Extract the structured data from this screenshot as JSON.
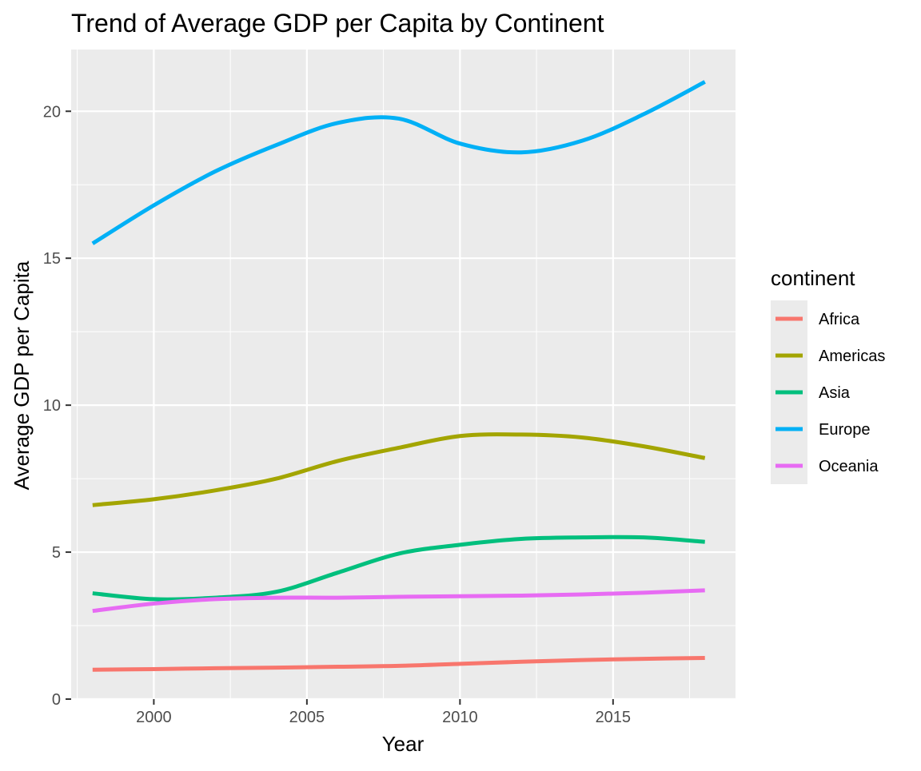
{
  "chart_data": {
    "type": "line",
    "title": "Trend of Average GDP per Capita by Continent",
    "xlabel": "Year",
    "ylabel": "Average GDP per Capita",
    "xlim": [
      1997.3,
      2019.0
    ],
    "ylim": [
      0,
      22.1
    ],
    "x_ticks": [
      2000,
      2005,
      2010,
      2015
    ],
    "y_ticks": [
      0,
      5,
      10,
      15,
      20
    ],
    "x_tick_labels": [
      "2000",
      "2005",
      "2010",
      "2015"
    ],
    "y_tick_labels": [
      "0",
      "5",
      "10",
      "15",
      "20"
    ],
    "grid": true,
    "legend": {
      "title": "continent",
      "position": "right"
    },
    "x": [
      1998,
      2000,
      2002,
      2004,
      2006,
      2008,
      2010,
      2012,
      2014,
      2016,
      2018
    ],
    "series": [
      {
        "name": "Africa",
        "color": "#F8766D",
        "values": [
          1.0,
          1.02,
          1.05,
          1.07,
          1.1,
          1.13,
          1.2,
          1.27,
          1.33,
          1.37,
          1.4
        ]
      },
      {
        "name": "Americas",
        "color": "#A3A500",
        "values": [
          6.6,
          6.8,
          7.1,
          7.5,
          8.1,
          8.55,
          8.95,
          9.0,
          8.9,
          8.6,
          8.2
        ]
      },
      {
        "name": "Asia",
        "color": "#00BF7D",
        "values": [
          3.6,
          3.4,
          3.45,
          3.65,
          4.3,
          4.95,
          5.25,
          5.45,
          5.5,
          5.5,
          5.35
        ]
      },
      {
        "name": "Europe",
        "color": "#00B0F6",
        "values": [
          15.5,
          16.8,
          17.95,
          18.85,
          19.6,
          19.75,
          18.9,
          18.6,
          19.0,
          19.9,
          21.0
        ]
      },
      {
        "name": "Oceania",
        "color": "#E76BF3",
        "values": [
          3.0,
          3.25,
          3.4,
          3.45,
          3.45,
          3.48,
          3.5,
          3.52,
          3.56,
          3.62,
          3.7
        ]
      }
    ]
  }
}
